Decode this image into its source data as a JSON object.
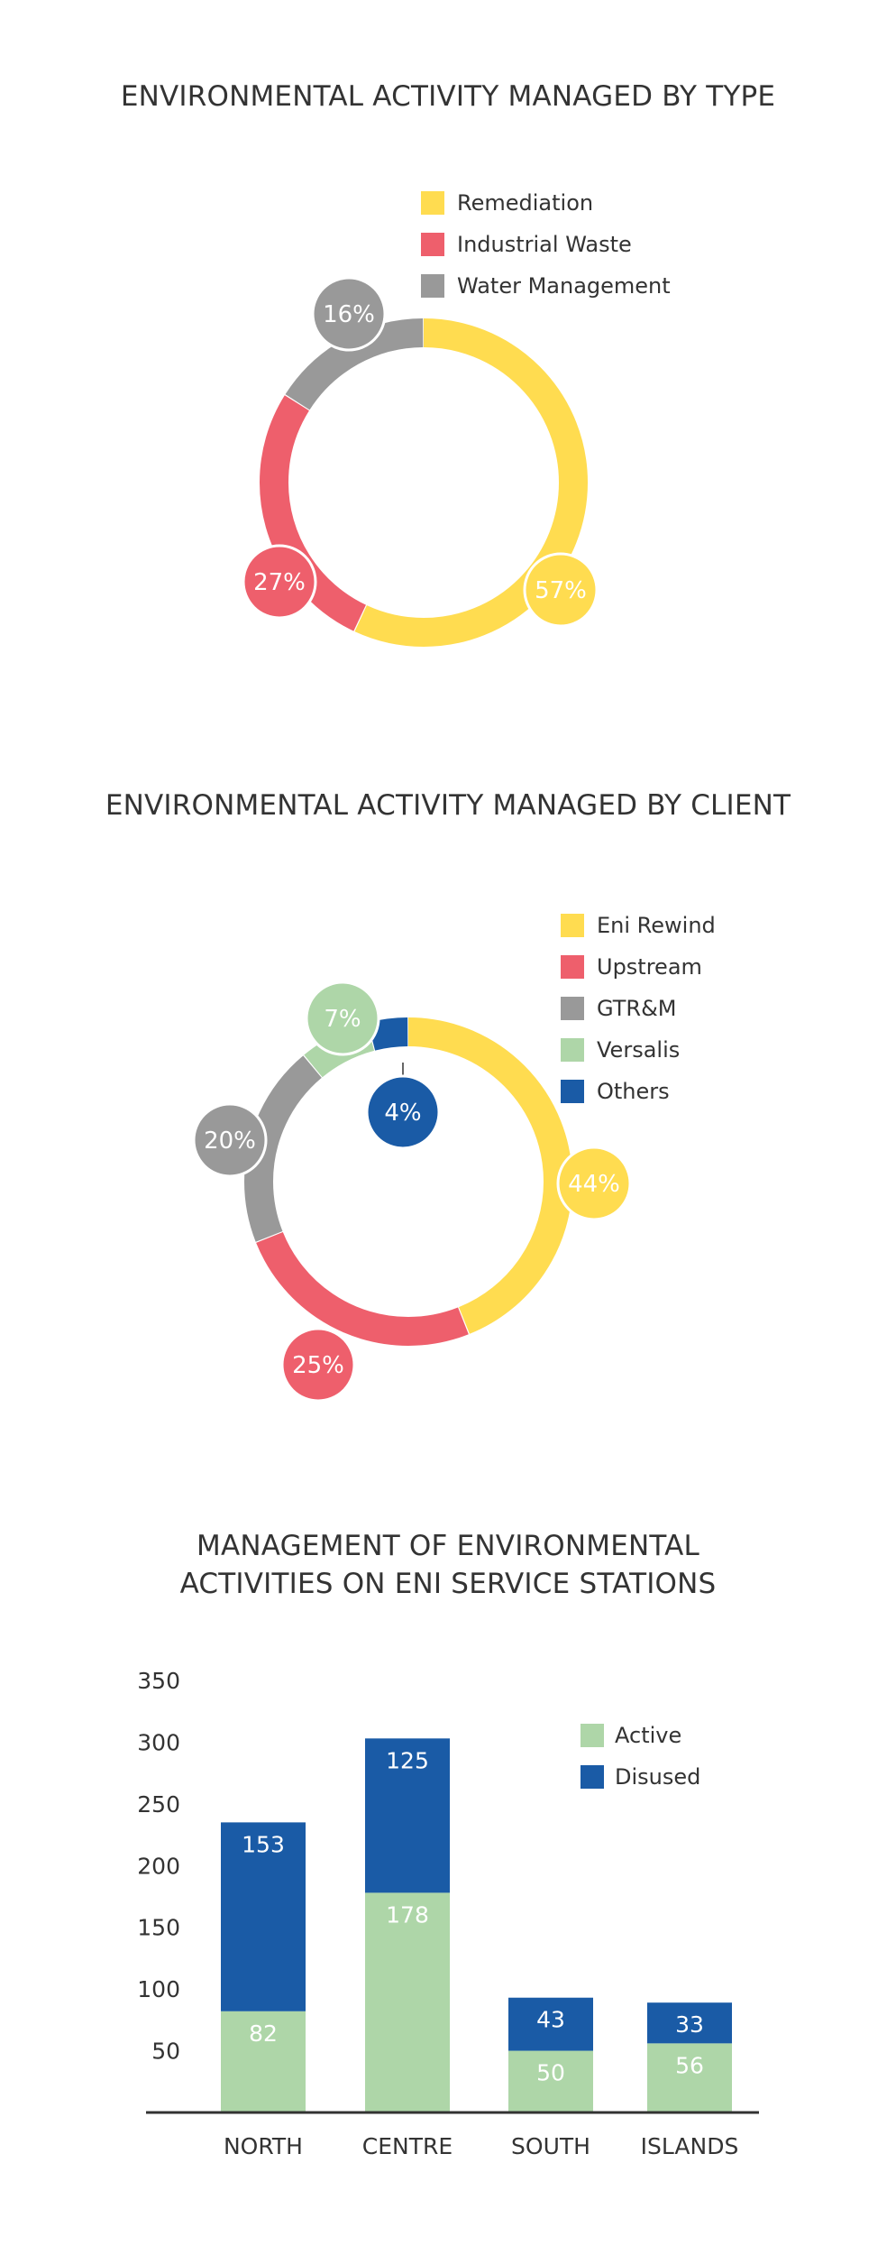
{
  "chart_data": [
    {
      "type": "pie",
      "title": "ENVIRONMENTAL ACTIVITY MANAGED BY TYPE",
      "categories": [
        "Remediation",
        "Industrial Waste",
        "Water Management"
      ],
      "values": [
        57,
        27,
        16
      ],
      "labels": [
        "57%",
        "27%",
        "16%"
      ],
      "colors": [
        "#FFDC50",
        "#EE5F6C",
        "#999999"
      ],
      "legend": "top-right"
    },
    {
      "type": "pie",
      "title": "ENVIRONMENTAL ACTIVITY MANAGED BY CLIENT",
      "categories": [
        "Eni Rewind",
        "Upstream",
        "GTR&M",
        "Versalis",
        "Others"
      ],
      "values": [
        44,
        25,
        20,
        7,
        4
      ],
      "labels": [
        "44%",
        "25%",
        "20%",
        "7%",
        "4%"
      ],
      "colors": [
        "#FFDC50",
        "#EE5F6C",
        "#999999",
        "#AED6A8",
        "#1A5BA6"
      ],
      "legend": "top-right"
    },
    {
      "type": "bar",
      "stacked": true,
      "title_lines": [
        "MANAGEMENT OF ENVIRONMENTAL",
        "ACTIVITIES ON ENI SERVICE STATIONS"
      ],
      "categories": [
        "NORTH",
        "CENTRE",
        "SOUTH",
        "ISLANDS"
      ],
      "series": [
        {
          "name": "Active",
          "values": [
            82,
            178,
            50,
            56
          ],
          "color": "#AED6A8"
        },
        {
          "name": "Disused",
          "values": [
            153,
            125,
            43,
            33
          ],
          "color": "#1A5BA6"
        }
      ],
      "ylim": [
        0,
        350
      ],
      "yticks": [
        50,
        100,
        150,
        200,
        250,
        300,
        350
      ],
      "grid": false,
      "legend": "top-right"
    }
  ]
}
